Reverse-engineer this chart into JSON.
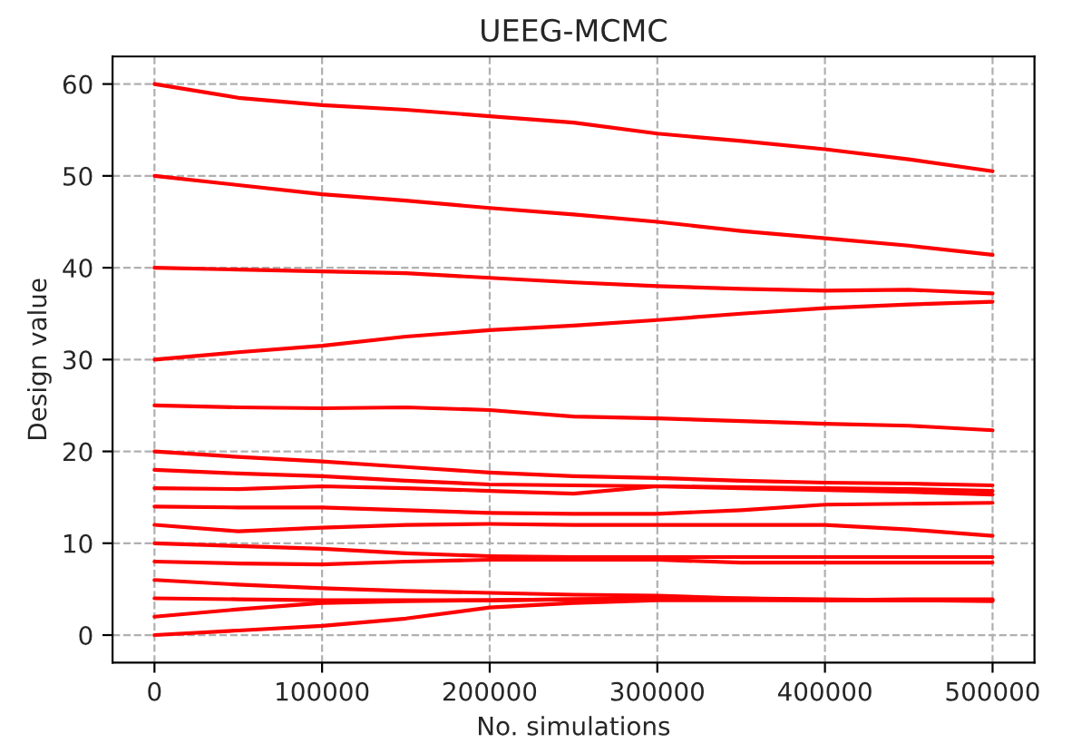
{
  "chart_data": {
    "type": "line",
    "title": "UEEG-MCMC",
    "xlabel": "No. simulations",
    "ylabel": "Design value",
    "x": [
      0,
      50000,
      100000,
      150000,
      200000,
      250000,
      300000,
      350000,
      400000,
      450000,
      500000
    ],
    "series": [
      {
        "color": "#ff0000",
        "values": [
          60,
          58.5,
          57.7,
          57.2,
          56.5,
          55.8,
          54.6,
          53.8,
          52.9,
          51.8,
          50.5
        ]
      },
      {
        "color": "#ff0000",
        "values": [
          50,
          49,
          48,
          47.3,
          46.5,
          45.8,
          45,
          44,
          43.2,
          42.4,
          41.4
        ]
      },
      {
        "color": "#ff0000",
        "values": [
          40,
          39.8,
          39.6,
          39.4,
          38.9,
          38.4,
          38,
          37.7,
          37.5,
          37.6,
          37.2
        ]
      },
      {
        "color": "#ff0000",
        "values": [
          30,
          30.8,
          31.5,
          32.5,
          33.2,
          33.7,
          34.3,
          35,
          35.6,
          36,
          36.3
        ]
      },
      {
        "color": "#ff0000",
        "values": [
          25,
          24.8,
          24.7,
          24.8,
          24.5,
          23.8,
          23.6,
          23.3,
          23,
          22.8,
          22.3
        ]
      },
      {
        "color": "#ff0000",
        "values": [
          20,
          19.4,
          18.9,
          18.3,
          17.7,
          17.3,
          17.1,
          16.8,
          16.6,
          16.5,
          16.3
        ]
      },
      {
        "color": "#ff0000",
        "values": [
          18,
          17.6,
          17.3,
          16.8,
          16.4,
          16.3,
          16.2,
          16.1,
          16,
          15.9,
          15.7
        ]
      },
      {
        "color": "#ff0000",
        "values": [
          16,
          15.9,
          16.2,
          16,
          15.7,
          15.4,
          16.2,
          16,
          15.8,
          15.6,
          15.3
        ]
      },
      {
        "color": "#ff0000",
        "values": [
          14,
          13.9,
          13.9,
          13.6,
          13.3,
          13.2,
          13.2,
          13.6,
          14.2,
          14.3,
          14.4
        ]
      },
      {
        "color": "#ff0000",
        "values": [
          12,
          11.3,
          11.7,
          12,
          12.1,
          12,
          12,
          12,
          12,
          11.5,
          10.8
        ]
      },
      {
        "color": "#ff0000",
        "values": [
          10,
          9.7,
          9.4,
          8.9,
          8.6,
          8.5,
          8.5,
          8.5,
          8.5,
          8.5,
          8.5
        ]
      },
      {
        "color": "#ff0000",
        "values": [
          8,
          7.8,
          7.7,
          8,
          8.2,
          8.2,
          8.2,
          7.9,
          7.9,
          7.9,
          7.9
        ]
      },
      {
        "color": "#ff0000",
        "values": [
          6,
          5.5,
          5.1,
          4.8,
          4.6,
          4.4,
          4.3,
          4,
          3.8,
          3.9,
          3.9
        ]
      },
      {
        "color": "#ff0000",
        "values": [
          4,
          3.9,
          3.8,
          3.8,
          3.8,
          3.9,
          4,
          3.9,
          3.8,
          3.8,
          3.7
        ]
      },
      {
        "color": "#ff0000",
        "values": [
          2,
          2.8,
          3.5,
          3.7,
          3.8,
          3.9,
          4,
          4,
          3.9,
          3.8,
          3.8
        ]
      },
      {
        "color": "#ff0000",
        "values": [
          0,
          0.5,
          1,
          1.8,
          3,
          3.5,
          3.8,
          3.8,
          3.8,
          3.8,
          3.8
        ]
      }
    ],
    "xlim": [
      -25000,
      525000
    ],
    "xticks": [
      0,
      100000,
      200000,
      300000,
      400000,
      500000
    ],
    "ylim": [
      -3,
      63
    ],
    "yticks": [
      0,
      10,
      20,
      30,
      40,
      50,
      60
    ],
    "grid": true,
    "line_style": "solid",
    "marker": "none"
  }
}
